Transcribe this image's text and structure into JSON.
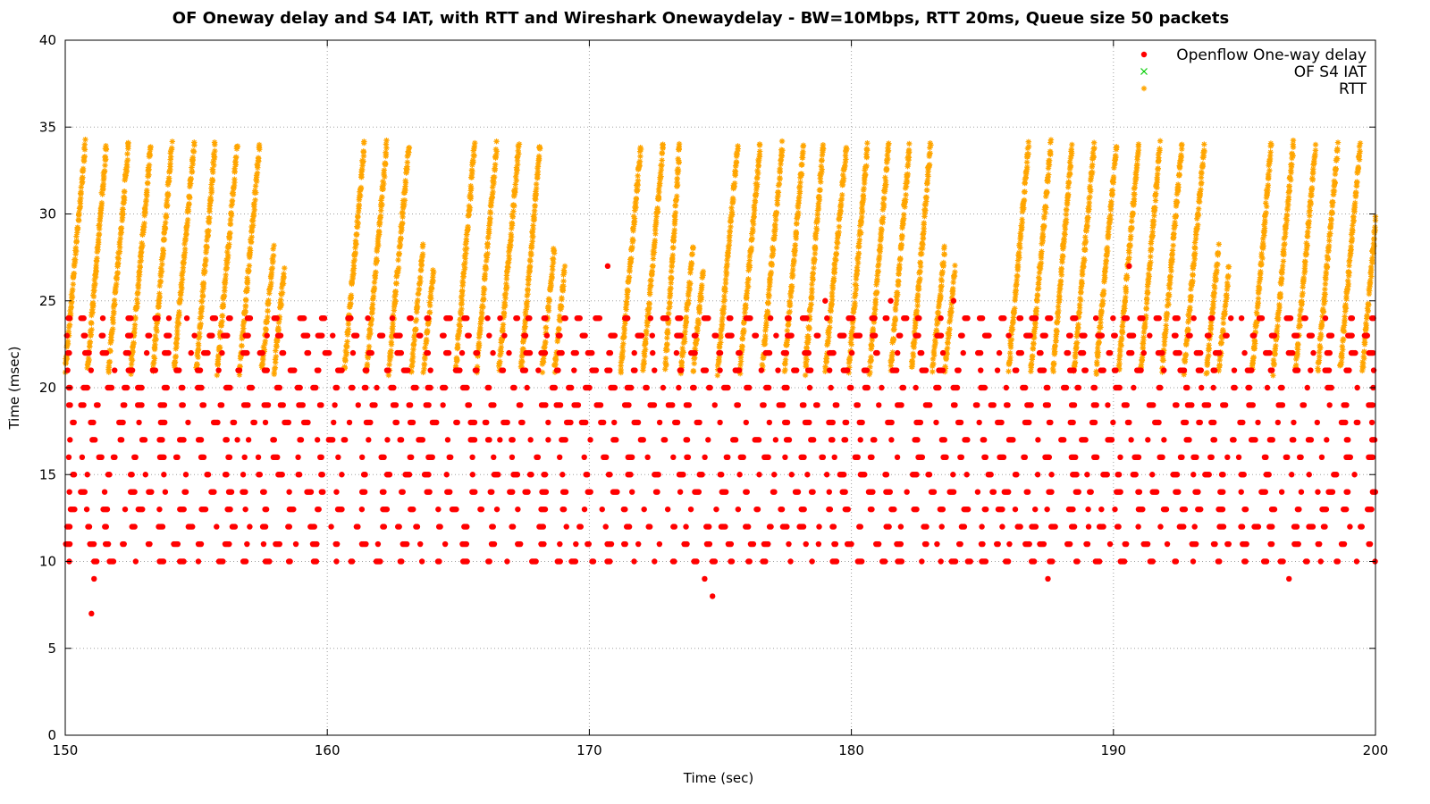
{
  "chart_data": {
    "type": "scatter",
    "title": "OF Oneway delay and S4 IAT, with RTT and Wireshark Onewaydelay - BW=10Mbps, RTT 20ms, Queue size 50 packets",
    "xlabel": "Time (sec)",
    "ylabel": "Time (msec)",
    "xlim": [
      150,
      200
    ],
    "ylim": [
      0,
      40
    ],
    "x_ticks": [
      150,
      160,
      170,
      180,
      190,
      200
    ],
    "y_ticks": [
      0,
      5,
      10,
      15,
      20,
      25,
      30,
      35,
      40
    ],
    "grid": true,
    "legend_position": "top-right",
    "series": [
      {
        "name": "Openflow One-way delay",
        "marker": "filled-circle",
        "color": "#ff0000",
        "levels": [
          10,
          11,
          12,
          13,
          14,
          15,
          16,
          17,
          18,
          19,
          20,
          21,
          22,
          23,
          24
        ],
        "outliers": [
          {
            "x": 151.0,
            "y": 7
          },
          {
            "x": 151.1,
            "y": 9
          },
          {
            "x": 170.7,
            "y": 27
          },
          {
            "x": 174.4,
            "y": 9
          },
          {
            "x": 174.7,
            "y": 8
          },
          {
            "x": 179.0,
            "y": 25
          },
          {
            "x": 181.5,
            "y": 25
          },
          {
            "x": 183.9,
            "y": 25
          },
          {
            "x": 187.5,
            "y": 9
          },
          {
            "x": 190.6,
            "y": 27
          },
          {
            "x": 196.7,
            "y": 9
          }
        ]
      },
      {
        "name": "OF S4 IAT",
        "marker": "cross",
        "color": "#00cc00"
      },
      {
        "name": "RTT",
        "marker": "asterisk",
        "color": "#ffa500",
        "y_range": [
          21,
          34
        ],
        "sawtooth_start_times": [
          150.0,
          150.85,
          151.65,
          152.5,
          153.35,
          154.15,
          155.0,
          155.8,
          156.65,
          157.5,
          160.65,
          161.5,
          162.35,
          163.2,
          164.9,
          165.7,
          166.55,
          167.4,
          168.2,
          171.2,
          172.05,
          172.9,
          173.5,
          174.9,
          175.75,
          176.6,
          177.45,
          178.25,
          179.0,
          179.9,
          180.7,
          181.5,
          182.3,
          183.1,
          186.0,
          186.85,
          187.7,
          188.5,
          189.35,
          190.2,
          191.05,
          191.85,
          192.7,
          193.55,
          195.3,
          196.1,
          196.95,
          197.8,
          198.65,
          199.5
        ]
      }
    ]
  }
}
